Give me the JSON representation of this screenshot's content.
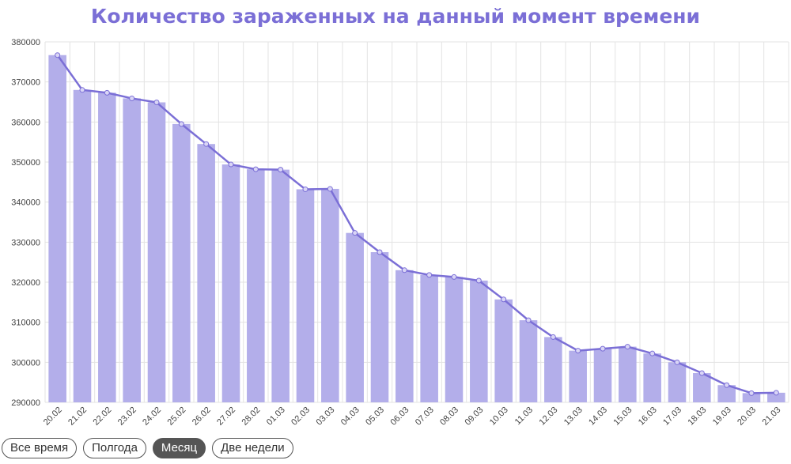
{
  "title": "Количество зараженных на данный момент времени",
  "colors": {
    "bar": "#b3aeea",
    "line": "#7b6fd6",
    "grid": "#e3e3e3",
    "title": "#7b6fd6"
  },
  "tabs": [
    {
      "label": "Все время",
      "active": false
    },
    {
      "label": "Полгода",
      "active": false
    },
    {
      "label": "Месяц",
      "active": true
    },
    {
      "label": "Две недели",
      "active": false
    }
  ],
  "chart_data": {
    "type": "bar",
    "title": "Количество зараженных на данный момент времени",
    "xlabel": "",
    "ylabel": "",
    "ylim": [
      290000,
      380000
    ],
    "yticks": [
      290000,
      300000,
      310000,
      320000,
      330000,
      340000,
      350000,
      360000,
      370000,
      380000
    ],
    "grid": true,
    "categories": [
      "20.02",
      "21.02",
      "22.02",
      "23.02",
      "24.02",
      "25.02",
      "26.02",
      "27.02",
      "28.02",
      "01.03",
      "02.03",
      "03.03",
      "04.03",
      "05.03",
      "06.03",
      "07.03",
      "08.03",
      "09.03",
      "10.03",
      "11.03",
      "12.03",
      "13.03",
      "14.03",
      "15.03",
      "16.03",
      "17.03",
      "18.03",
      "19.03",
      "20.03",
      "21.03"
    ],
    "series": [
      {
        "type": "bar",
        "values": [
          376700,
          368000,
          367300,
          365900,
          364900,
          359500,
          354500,
          349400,
          348200,
          348100,
          343200,
          343300,
          332300,
          327500,
          323000,
          321800,
          321300,
          320400,
          315700,
          310500,
          306300,
          302900,
          303400,
          303900,
          302200,
          300000,
          297300,
          294300,
          292300,
          292400
        ]
      },
      {
        "type": "line",
        "values": [
          376700,
          368000,
          367300,
          365900,
          364900,
          359500,
          354500,
          349400,
          348200,
          348100,
          343200,
          343300,
          332300,
          327500,
          323000,
          321800,
          321300,
          320400,
          315700,
          310500,
          306300,
          302900,
          303400,
          303900,
          302200,
          300000,
          297300,
          294300,
          292300,
          292400
        ]
      }
    ]
  }
}
